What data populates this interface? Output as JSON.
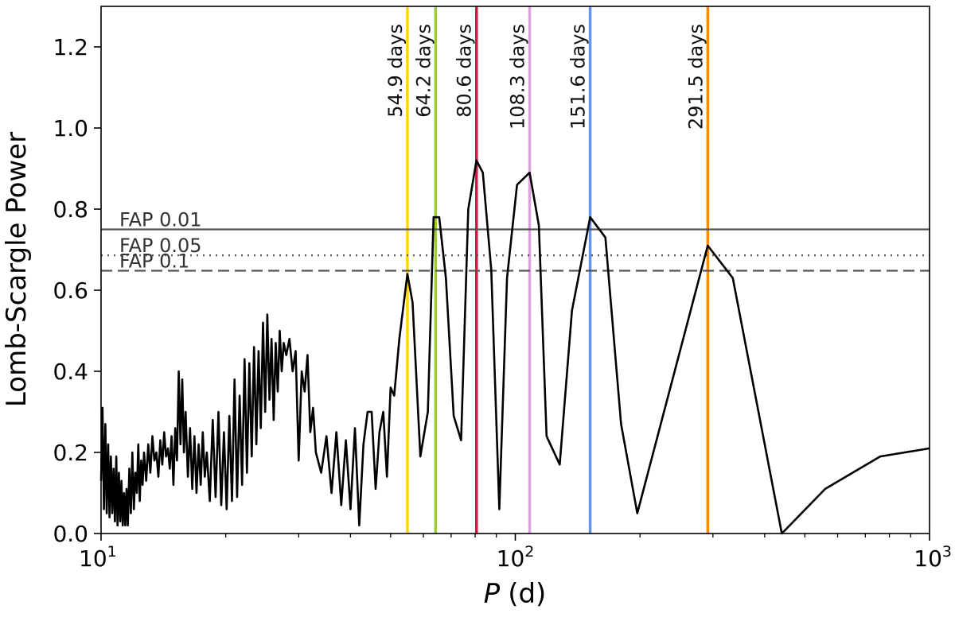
{
  "chart_data": {
    "type": "line",
    "title": "",
    "xlabel_symbol": "P",
    "xlabel_unit": "(d)",
    "ylabel": "Lomb-Scargle Power",
    "xscale": "log",
    "xlim": [
      10,
      1000
    ],
    "ylim": [
      0,
      1.3
    ],
    "grid": false,
    "xticks": [
      {
        "value": 10,
        "base": "10",
        "exp": "1"
      },
      {
        "value": 100,
        "base": "10",
        "exp": "2"
      },
      {
        "value": 1000,
        "base": "10",
        "exp": "3"
      }
    ],
    "yticks": [
      {
        "value": 0.0,
        "label": "0.0"
      },
      {
        "value": 0.2,
        "label": "0.2"
      },
      {
        "value": 0.4,
        "label": "0.4"
      },
      {
        "value": 0.6,
        "label": "0.6"
      },
      {
        "value": 0.8,
        "label": "0.8"
      },
      {
        "value": 1.0,
        "label": "1.0"
      },
      {
        "value": 1.2,
        "label": "1.2"
      }
    ],
    "fap_levels": [
      {
        "label": "FAP 0.01",
        "value": 0.75,
        "style": "solid",
        "color": "#555555"
      },
      {
        "label": "FAP 0.05",
        "value": 0.686,
        "style": "dotted",
        "color": "#555555"
      },
      {
        "label": "FAP 0.1",
        "value": 0.648,
        "style": "dashed",
        "color": "#555555"
      }
    ],
    "period_markers": [
      {
        "label": "54.9 days",
        "value": 54.9,
        "color": "#FFD700"
      },
      {
        "label": "64.2 days",
        "value": 64.2,
        "color": "#9ACD32"
      },
      {
        "label": "80.6 days",
        "value": 80.6,
        "color": "#DC143C"
      },
      {
        "label": "108.3 days",
        "value": 108.3,
        "color": "#DDA0DD"
      },
      {
        "label": "151.6 days",
        "value": 151.6,
        "color": "#6495ED"
      },
      {
        "label": "291.5 days",
        "value": 291.5,
        "color": "#FF8C00"
      }
    ],
    "series": [
      {
        "color": "#000000",
        "points": [
          [
            10.0,
            0.13
          ],
          [
            10.08,
            0.31
          ],
          [
            10.16,
            0.06
          ],
          [
            10.24,
            0.27
          ],
          [
            10.32,
            0.05
          ],
          [
            10.4,
            0.22
          ],
          [
            10.48,
            0.04
          ],
          [
            10.56,
            0.19
          ],
          [
            10.64,
            0.05
          ],
          [
            10.72,
            0.16
          ],
          [
            10.8,
            0.03
          ],
          [
            10.88,
            0.19
          ],
          [
            10.96,
            0.02
          ],
          [
            11.04,
            0.15
          ],
          [
            11.12,
            0.03
          ],
          [
            11.2,
            0.13
          ],
          [
            11.28,
            0.02
          ],
          [
            11.36,
            0.1
          ],
          [
            11.44,
            0.02
          ],
          [
            11.52,
            0.11
          ],
          [
            11.6,
            0.02
          ],
          [
            11.7,
            0.16
          ],
          [
            11.8,
            0.05
          ],
          [
            11.9,
            0.2
          ],
          [
            12.0,
            0.06
          ],
          [
            12.1,
            0.15
          ],
          [
            12.2,
            0.1
          ],
          [
            12.3,
            0.22
          ],
          [
            12.4,
            0.08
          ],
          [
            12.5,
            0.18
          ],
          [
            12.6,
            0.12
          ],
          [
            12.7,
            0.2
          ],
          [
            12.85,
            0.13
          ],
          [
            13.0,
            0.22
          ],
          [
            13.15,
            0.15
          ],
          [
            13.3,
            0.24
          ],
          [
            13.45,
            0.18
          ],
          [
            13.6,
            0.2
          ],
          [
            13.75,
            0.14
          ],
          [
            13.9,
            0.23
          ],
          [
            14.05,
            0.17
          ],
          [
            14.2,
            0.25
          ],
          [
            14.35,
            0.19
          ],
          [
            14.5,
            0.21
          ],
          [
            14.65,
            0.16
          ],
          [
            14.8,
            0.24
          ],
          [
            14.95,
            0.12
          ],
          [
            15.1,
            0.26
          ],
          [
            15.25,
            0.18
          ],
          [
            15.4,
            0.4
          ],
          [
            15.55,
            0.22
          ],
          [
            15.7,
            0.38
          ],
          [
            15.85,
            0.2
          ],
          [
            16.0,
            0.3
          ],
          [
            16.2,
            0.14
          ],
          [
            16.4,
            0.26
          ],
          [
            16.6,
            0.11
          ],
          [
            16.8,
            0.24
          ],
          [
            17.0,
            0.1
          ],
          [
            17.2,
            0.22
          ],
          [
            17.4,
            0.12
          ],
          [
            17.6,
            0.25
          ],
          [
            17.8,
            0.14
          ],
          [
            18.0,
            0.2
          ],
          [
            18.3,
            0.08
          ],
          [
            18.6,
            0.28
          ],
          [
            18.9,
            0.09
          ],
          [
            19.2,
            0.3
          ],
          [
            19.5,
            0.07
          ],
          [
            19.8,
            0.25
          ],
          [
            20.1,
            0.06
          ],
          [
            20.4,
            0.29
          ],
          [
            20.7,
            0.08
          ],
          [
            21.0,
            0.38
          ],
          [
            21.3,
            0.09
          ],
          [
            21.6,
            0.34
          ],
          [
            21.9,
            0.12
          ],
          [
            22.2,
            0.43
          ],
          [
            22.5,
            0.15
          ],
          [
            22.8,
            0.42
          ],
          [
            23.1,
            0.19
          ],
          [
            23.4,
            0.46
          ],
          [
            23.7,
            0.22
          ],
          [
            24.0,
            0.45
          ],
          [
            24.3,
            0.26
          ],
          [
            24.6,
            0.52
          ],
          [
            24.9,
            0.3
          ],
          [
            25.2,
            0.54
          ],
          [
            25.5,
            0.33
          ],
          [
            25.8,
            0.48
          ],
          [
            26.1,
            0.28
          ],
          [
            26.4,
            0.47
          ],
          [
            26.7,
            0.35
          ],
          [
            27.0,
            0.5
          ],
          [
            27.3,
            0.4
          ],
          [
            27.6,
            0.47
          ],
          [
            28.0,
            0.44
          ],
          [
            28.5,
            0.48
          ],
          [
            29.0,
            0.4
          ],
          [
            29.5,
            0.45
          ],
          [
            30.0,
            0.18
          ],
          [
            30.5,
            0.4
          ],
          [
            31.0,
            0.35
          ],
          [
            31.5,
            0.44
          ],
          [
            32.0,
            0.25
          ],
          [
            32.5,
            0.31
          ],
          [
            33.0,
            0.2
          ],
          [
            34.0,
            0.15
          ],
          [
            35.0,
            0.24
          ],
          [
            36.0,
            0.1
          ],
          [
            37.0,
            0.25
          ],
          [
            38.0,
            0.07
          ],
          [
            39.0,
            0.23
          ],
          [
            40.0,
            0.06
          ],
          [
            41.0,
            0.26
          ],
          [
            42.0,
            0.02
          ],
          [
            43.0,
            0.22
          ],
          [
            44.0,
            0.3
          ],
          [
            45.0,
            0.3
          ],
          [
            46.0,
            0.11
          ],
          [
            47.0,
            0.25
          ],
          [
            48.0,
            0.3
          ],
          [
            49.0,
            0.14
          ],
          [
            50.0,
            0.36
          ],
          [
            51.0,
            0.34
          ],
          [
            52.5,
            0.48
          ],
          [
            54.9,
            0.64
          ],
          [
            56.5,
            0.57
          ],
          [
            59.0,
            0.19
          ],
          [
            61.5,
            0.3
          ],
          [
            63.5,
            0.78
          ],
          [
            65.5,
            0.78
          ],
          [
            68.0,
            0.63
          ],
          [
            71.0,
            0.29
          ],
          [
            74.0,
            0.23
          ],
          [
            77.0,
            0.8
          ],
          [
            80.6,
            0.92
          ],
          [
            83.5,
            0.89
          ],
          [
            87.5,
            0.65
          ],
          [
            91.5,
            0.06
          ],
          [
            95.5,
            0.63
          ],
          [
            101.0,
            0.86
          ],
          [
            108.3,
            0.89
          ],
          [
            114.0,
            0.76
          ],
          [
            119.0,
            0.24
          ],
          [
            128.0,
            0.17
          ],
          [
            137.0,
            0.55
          ],
          [
            151.6,
            0.78
          ],
          [
            165.0,
            0.73
          ],
          [
            180.0,
            0.27
          ],
          [
            197.0,
            0.05
          ],
          [
            291.5,
            0.71
          ],
          [
            335.0,
            0.63
          ],
          [
            440.0,
            0.0
          ],
          [
            560.0,
            0.11
          ],
          [
            760.0,
            0.19
          ],
          [
            1000.0,
            0.21
          ]
        ]
      }
    ]
  }
}
